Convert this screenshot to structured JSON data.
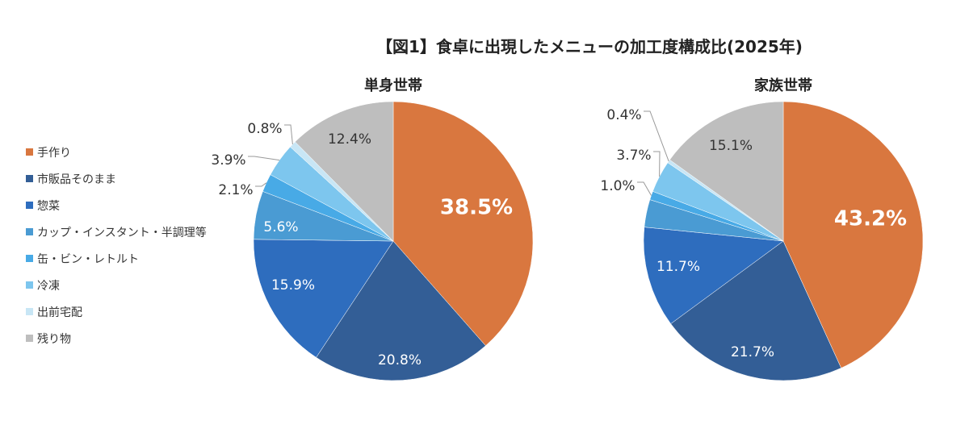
{
  "chart_data": [
    {
      "type": "pie",
      "title": "【図1】食卓に出現したメニューの加工度構成比(2025年)",
      "subtitle": "単身世帯",
      "categories": [
        "手作り",
        "市販品そのまま",
        "惣菜",
        "カップ・インスタント・半調理等",
        "缶・ビン・レトルト",
        "冷凍",
        "出前宅配",
        "残り物"
      ],
      "values": [
        38.5,
        20.8,
        15.9,
        5.6,
        2.1,
        3.9,
        0.8,
        12.4
      ],
      "labels": [
        "38.5%",
        "20.8%",
        "15.9%",
        "5.6%",
        "2.1%",
        "3.9%",
        "0.8%",
        "12.4%"
      ]
    },
    {
      "type": "pie",
      "subtitle": "家族世帯",
      "categories": [
        "手作り",
        "市販品そのまま",
        "惣菜",
        "カップ・インスタント・半調理等",
        "缶・ビン・レトルト",
        "冷凍",
        "出前宅配",
        "残り物"
      ],
      "values": [
        43.2,
        21.7,
        11.7,
        3.2,
        1.0,
        3.7,
        0.4,
        15.1
      ],
      "labels": [
        "43.2%",
        "21.7%",
        "11.7%",
        "",
        "1.0%",
        "3.7%",
        "0.4%",
        "15.1%"
      ]
    }
  ],
  "colors": [
    "#D9773F",
    "#335E96",
    "#2E6DBE",
    "#4A9BD3",
    "#48AAE6",
    "#7DC6EE",
    "#C8E6F5",
    "#BEBEBE"
  ],
  "legend_position": "left"
}
